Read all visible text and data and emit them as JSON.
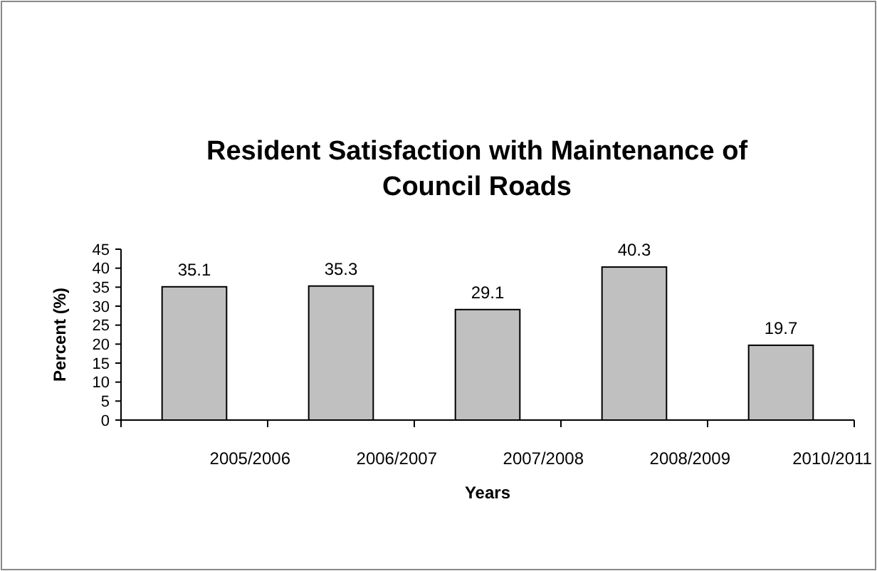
{
  "chart_data": {
    "type": "bar",
    "title": "Resident Satisfaction with Maintenance of Council Roads",
    "xlabel": "Years",
    "ylabel": "Percent (%)",
    "categories": [
      "2005/2006",
      "2006/2007",
      "2007/2008",
      "2008/2009",
      "2010/2011"
    ],
    "values": [
      35.1,
      35.3,
      29.1,
      40.3,
      19.7
    ],
    "color": "#c0c0c0",
    "ylim": [
      0,
      45
    ],
    "yticks": [
      0,
      5,
      10,
      15,
      20,
      25,
      30,
      35,
      40,
      45
    ],
    "data_labels": true
  }
}
